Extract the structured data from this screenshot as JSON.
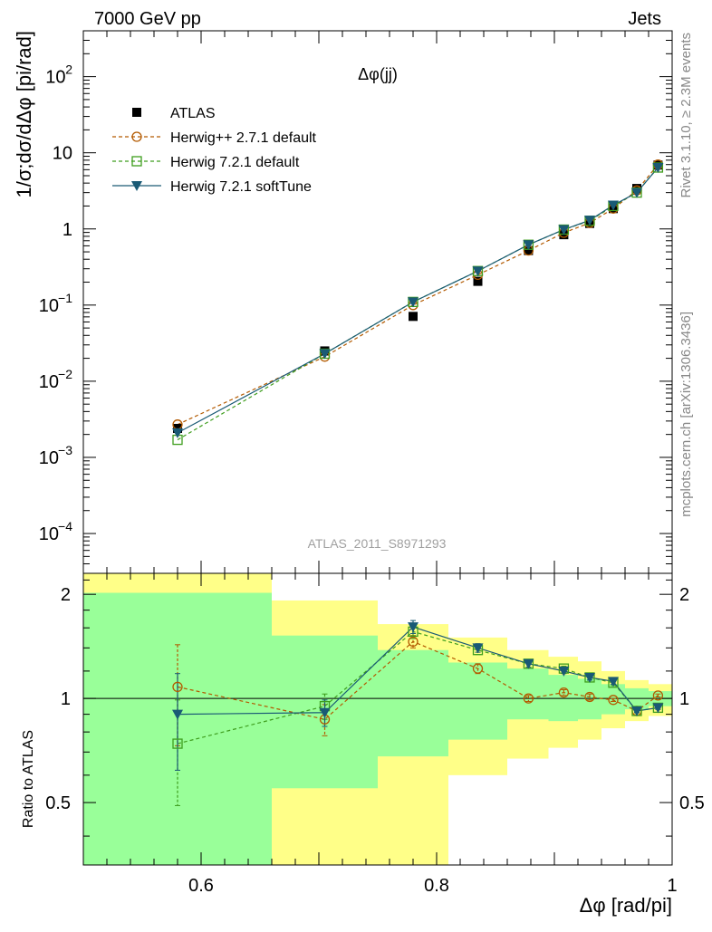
{
  "header": {
    "left": "7000 GeV pp",
    "right": "Jets"
  },
  "plot_title": "Δφ(jj)",
  "analysis_id": "ATLAS_2011_S8971293",
  "side_labels": {
    "rivet": "Rivet 3.1.10, ≥ 2.3M events",
    "mcplots": "mcplots.cern.ch [arXiv:1306.3436]"
  },
  "axes": {
    "ylabel_main": "1/σ;dσ/dΔφ [pi/rad]",
    "ylabel_ratio": "Ratio to ATLAS",
    "xlabel": "Δφ [rad/pi]"
  },
  "legend": [
    "ATLAS",
    "Herwig++ 2.7.1 default",
    "Herwig 7.2.1 default",
    "Herwig 7.2.1 softTune"
  ],
  "colors": {
    "atlas": "#000000",
    "herwigpp": "#b35a00",
    "herwig721": "#3f9e1e",
    "softtune": "#1a5a75",
    "band_inner": "#99ff99",
    "band_outer": "#ffff88"
  },
  "chart_data": {
    "type": "scatter",
    "x_scale": "linear",
    "y_scale": "log",
    "xlim": [
      0.5,
      1.0
    ],
    "ylim": [
      3e-05,
      400
    ],
    "ratio_ylim": [
      0.33,
      2.3
    ],
    "x_ticks": [
      "0.6",
      "0.8",
      "1"
    ],
    "y_ticks": [
      "10^-4",
      "10^-3",
      "10^-2",
      "10^-1",
      "1",
      "10",
      "10^2"
    ],
    "ratio_ticks": [
      "0.5",
      "1",
      "2"
    ],
    "bins": [
      {
        "lo": 0.5,
        "hi": 0.66,
        "in_lo": 0.33,
        "in_hi": 2.02,
        "out_lo": 0.33,
        "out_hi": 2.3
      },
      {
        "lo": 0.66,
        "hi": 0.75,
        "in_lo": 0.55,
        "in_hi": 1.52,
        "out_lo": 0.33,
        "out_hi": 1.92
      },
      {
        "lo": 0.75,
        "hi": 0.81,
        "in_lo": 0.68,
        "in_hi": 1.38,
        "out_lo": 0.33,
        "out_hi": 1.64
      },
      {
        "lo": 0.81,
        "hi": 0.86,
        "in_lo": 0.76,
        "in_hi": 1.27,
        "out_lo": 0.6,
        "out_hi": 1.5
      },
      {
        "lo": 0.86,
        "hi": 0.895,
        "in_lo": 0.87,
        "in_hi": 1.22,
        "out_lo": 0.67,
        "out_hi": 1.38
      },
      {
        "lo": 0.895,
        "hi": 0.92,
        "in_lo": 0.86,
        "in_hi": 1.17,
        "out_lo": 0.72,
        "out_hi": 1.32
      },
      {
        "lo": 0.92,
        "hi": 0.94,
        "in_lo": 0.87,
        "in_hi": 1.14,
        "out_lo": 0.76,
        "out_hi": 1.28
      },
      {
        "lo": 0.94,
        "hi": 0.96,
        "in_lo": 0.9,
        "in_hi": 1.1,
        "out_lo": 0.82,
        "out_hi": 1.2
      },
      {
        "lo": 0.96,
        "hi": 0.98,
        "in_lo": 0.93,
        "in_hi": 1.07,
        "out_lo": 0.86,
        "out_hi": 1.13
      },
      {
        "lo": 0.98,
        "hi": 1.0,
        "in_lo": 0.95,
        "in_hi": 1.05,
        "out_lo": 0.89,
        "out_hi": 1.1
      }
    ],
    "x": [
      0.58,
      0.705,
      0.78,
      0.835,
      0.878,
      0.908,
      0.93,
      0.95,
      0.97,
      0.988
    ],
    "series": [
      {
        "name": "ATLAS",
        "values": [
          0.0024,
          0.025,
          0.071,
          0.205,
          0.52,
          0.84,
          1.18,
          1.85,
          3.4,
          6.9
        ]
      },
      {
        "name": "Herwig++ 2.7.1 default",
        "values": [
          0.0027,
          0.021,
          0.1,
          0.25,
          0.52,
          0.89,
          1.2,
          1.85,
          3.2,
          7.0
        ],
        "ratio": [
          1.08,
          0.87,
          1.46,
          1.22,
          1.0,
          1.04,
          1.01,
          0.99,
          0.92,
          1.02
        ],
        "ratio_err": [
          0.35,
          0.09,
          0.06,
          0.04,
          0.02,
          0.02,
          0.02,
          0.01,
          0.01,
          0.01
        ]
      },
      {
        "name": "Herwig 7.2.1 default",
        "values": [
          0.0017,
          0.023,
          0.11,
          0.28,
          0.62,
          0.98,
          1.28,
          2.0,
          3.0,
          6.4
        ],
        "ratio": [
          0.74,
          0.95,
          1.56,
          1.38,
          1.26,
          1.22,
          1.15,
          1.11,
          0.92,
          0.94
        ],
        "ratio_err": [
          0.25,
          0.08,
          0.07,
          0.04,
          0.03,
          0.02,
          0.02,
          0.02,
          0.01,
          0.01
        ]
      },
      {
        "name": "Herwig 7.2.1 softTune",
        "values": [
          0.0021,
          0.023,
          0.11,
          0.28,
          0.62,
          0.98,
          1.3,
          2.05,
          3.0,
          6.4
        ],
        "ratio": [
          0.9,
          0.91,
          1.61,
          1.4,
          1.26,
          1.2,
          1.15,
          1.12,
          0.92,
          0.94
        ],
        "ratio_err": [
          0.28,
          0.08,
          0.07,
          0.04,
          0.03,
          0.02,
          0.02,
          0.02,
          0.01,
          0.01
        ]
      }
    ]
  }
}
